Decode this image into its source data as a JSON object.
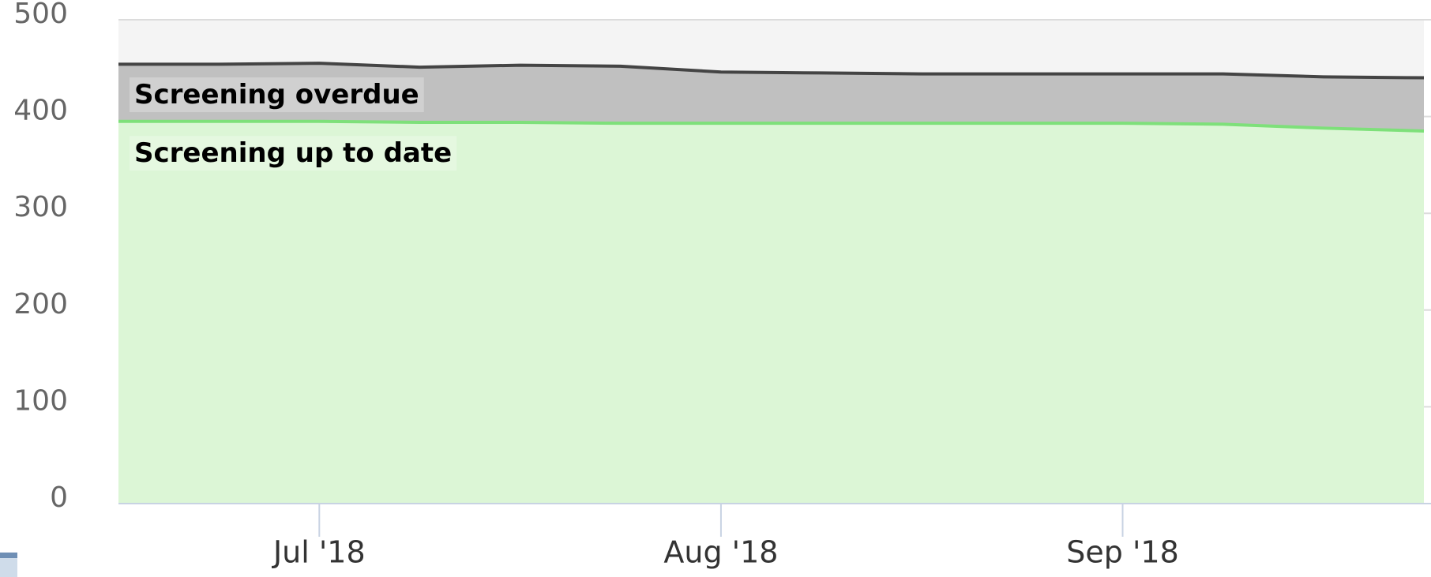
{
  "chart_data": {
    "type": "stacked-area",
    "categories": [
      null,
      null,
      "Jul '18",
      null,
      null,
      null,
      "Aug '18",
      null,
      null,
      null,
      "Sep '18",
      null,
      null,
      null
    ],
    "series": [
      {
        "name": "Screening up to date",
        "color": "#7ee07a",
        "fill": "#dcf6d6",
        "values": [
          395,
          395,
          395,
          394,
          394,
          393,
          393,
          393,
          393,
          393,
          393,
          392,
          388,
          385
        ]
      },
      {
        "name": "Screening overdue",
        "color": "#444444",
        "fill": "#c0c0c0",
        "values": [
          59,
          59,
          60,
          57,
          59,
          59,
          53,
          52,
          51,
          51,
          51,
          52,
          53,
          55
        ]
      }
    ],
    "ylim": [
      0,
      500
    ],
    "yticks": [
      0,
      100,
      200,
      300,
      400,
      500
    ],
    "grid": true
  }
}
